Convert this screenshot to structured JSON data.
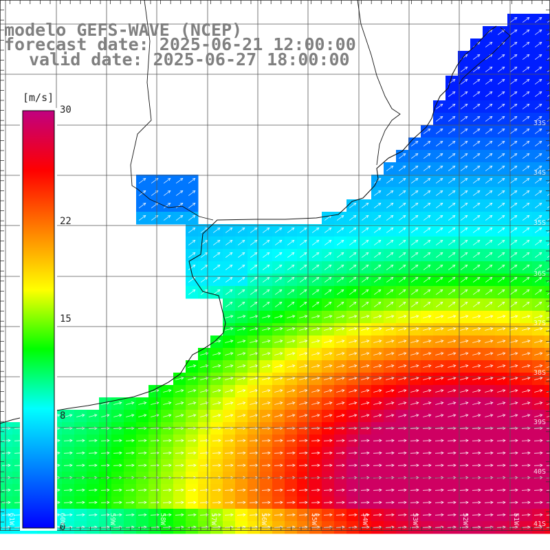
{
  "title": {
    "line1": "modelo GEFS-WAVE (NCEP)",
    "line2": "forecast date: 2025-06-21 12:00:00",
    "line3": "valid date: 2025-06-27 18:00:00"
  },
  "colorbar": {
    "unit": "[m/s]",
    "ticks": [
      {
        "value": 30,
        "label": "30"
      },
      {
        "value": 22,
        "label": "22"
      },
      {
        "value": 15,
        "label": "15"
      },
      {
        "value": 8,
        "label": "8"
      },
      {
        "value": 0,
        "label": "0"
      }
    ],
    "range": [
      0,
      30
    ],
    "colors": [
      "#0000ff",
      "#0080ff",
      "#00ffff",
      "#00ff00",
      "#ffff00",
      "#ff8000",
      "#ff0000",
      "#c00080"
    ]
  },
  "lat_labels": [
    "33S",
    "34S",
    "35S",
    "36S",
    "37S",
    "38S",
    "39S",
    "40S",
    "41S"
  ],
  "lon_labels": [
    "61W",
    "60W",
    "59W",
    "58W",
    "57W",
    "56W",
    "55W",
    "54W",
    "53W",
    "52W",
    "51W"
  ],
  "chart_data": {
    "type": "heatmap",
    "variable": "wind speed",
    "units": "m/s",
    "lat_range": [
      -41.4,
      -30.6
    ],
    "lon_range": [
      -61.2,
      -50.4
    ],
    "vector_direction": "from west-southwest to east-northeast"
  }
}
